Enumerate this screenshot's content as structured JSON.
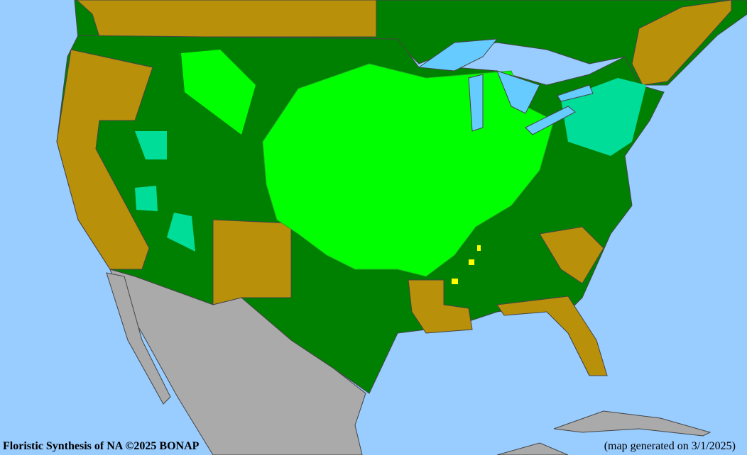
{
  "footer": {
    "credit": "Floristic Synthesis of NA ©2025 BONAP",
    "generated": "(map generated on 3/1/2025)"
  },
  "colors": {
    "ocean": "#99ccff",
    "present_not_rare": "#008000",
    "present_native": "#00ff00",
    "absent": "#b8900a",
    "non_native": "#00dd99",
    "noxious_or_rare": "#ffff00",
    "outside_range": "#aaaaaa",
    "boundary_lines": "#555555"
  }
}
